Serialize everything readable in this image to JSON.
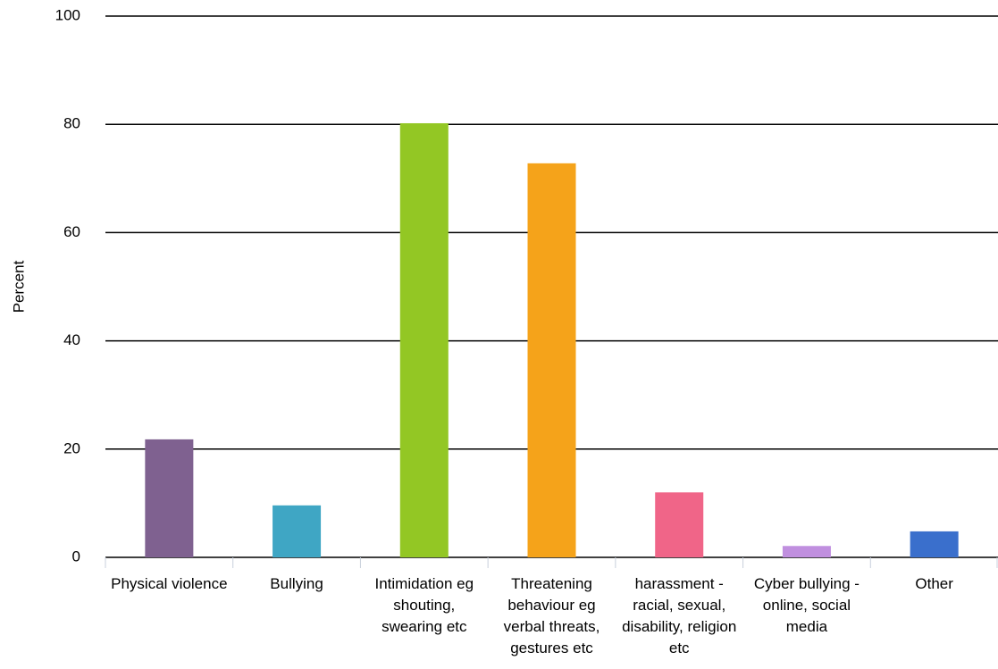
{
  "chart_data": {
    "type": "bar",
    "y_label": "Percent",
    "categories": [
      "Physical violence",
      "Bullying",
      "Intimidation eg shouting, swearing etc",
      "Threatening behaviour eg verbal threats, gestures etc",
      "harassment - racial, sexual, disability, religion etc",
      "Cyber bullying - online, social media",
      "Other"
    ],
    "values": [
      21.8,
      9.6,
      80.2,
      72.8,
      12.0,
      2.1,
      4.8
    ],
    "colors": [
      "#7f6190",
      "#3fa6c4",
      "#93c724",
      "#f5a31a",
      "#f06588",
      "#c08fdf",
      "#3a6fcc"
    ],
    "ylim": [
      0,
      100
    ],
    "yticks": [
      0,
      20,
      40,
      60,
      80,
      100
    ],
    "grid": true
  }
}
